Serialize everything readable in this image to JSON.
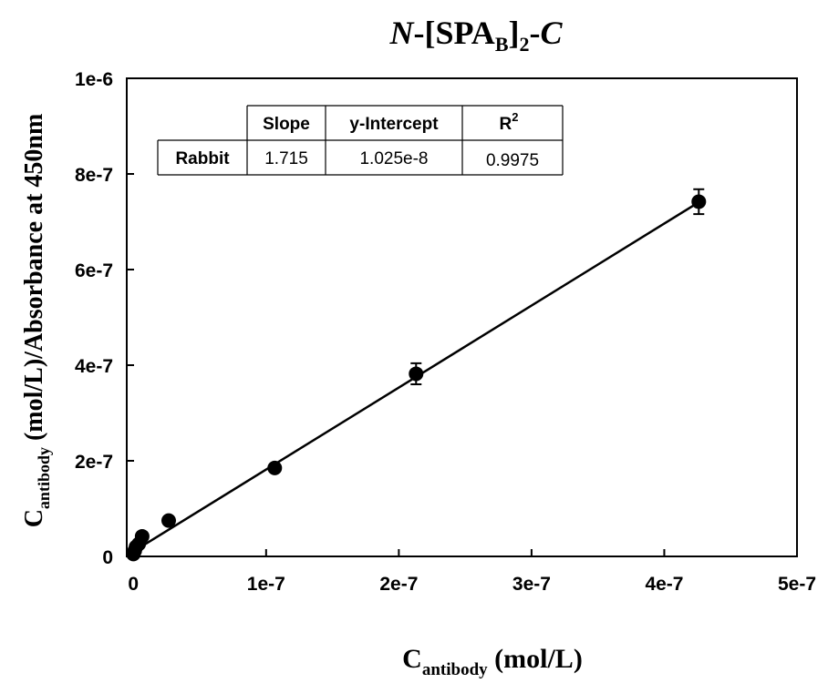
{
  "chart_data": {
    "type": "scatter",
    "title": {
      "prefix": "N",
      "dash1": "-[SPA",
      "sub": "B",
      "bracket": "]",
      "sub2": "2",
      "dash2": "-",
      "suffix": "C"
    },
    "xlabel": {
      "main": "C",
      "sub": "antibody",
      "rest": " (mol/L)"
    },
    "ylabel": {
      "main": "C",
      "sub": "antibody",
      "rest": " (mol/L)/Absorbance at 450nm"
    },
    "xlim": [
      -5e-09,
      5e-07
    ],
    "ylim": [
      0,
      1e-06
    ],
    "xticks": [
      {
        "value": 0,
        "label": "0"
      },
      {
        "value": 1e-07,
        "label": "1e-7"
      },
      {
        "value": 2e-07,
        "label": "2e-7"
      },
      {
        "value": 3e-07,
        "label": "3e-7"
      },
      {
        "value": 4e-07,
        "label": "4e-7"
      },
      {
        "value": 5e-07,
        "label": "5e-7"
      }
    ],
    "yticks": [
      {
        "value": 0,
        "label": "0"
      },
      {
        "value": 2e-07,
        "label": "2e-7"
      },
      {
        "value": 4e-07,
        "label": "4e-7"
      },
      {
        "value": 6e-07,
        "label": "6e-7"
      },
      {
        "value": 8e-07,
        "label": "8e-7"
      },
      {
        "value": 1e-06,
        "label": "1e-6"
      }
    ],
    "points": [
      {
        "x": 0.0,
        "y": 5e-09,
        "err": 2e-09
      },
      {
        "x": 1e-09,
        "y": 1.2e-08,
        "err": 2e-09
      },
      {
        "x": 2e-09,
        "y": 2e-08,
        "err": 3e-09
      },
      {
        "x": 4e-09,
        "y": 2.6e-08,
        "err": 3e-09
      },
      {
        "x": 6.6e-09,
        "y": 4.2e-08,
        "err": 4e-09
      },
      {
        "x": 2.66e-08,
        "y": 7.5e-08,
        "err": 6e-09
      },
      {
        "x": 1.065e-07,
        "y": 1.85e-07,
        "err": 8e-09
      },
      {
        "x": 2.13e-07,
        "y": 3.82e-07,
        "err": 2.2e-08
      },
      {
        "x": 4.26e-07,
        "y": 7.42e-07,
        "err": 2.6e-08
      }
    ],
    "fit": {
      "slope": 1.715,
      "intercept": 1.025e-08,
      "x_range": [
        0,
        4.26e-07
      ]
    },
    "grid": false,
    "legend": "none",
    "table": {
      "headers": [
        "Slope",
        "y-Intercept",
        "R"
      ],
      "r_sup": "2",
      "rows": [
        {
          "label": "Rabbit",
          "values": [
            "1.715",
            "1.025e-8",
            "0.9975"
          ]
        }
      ]
    }
  }
}
